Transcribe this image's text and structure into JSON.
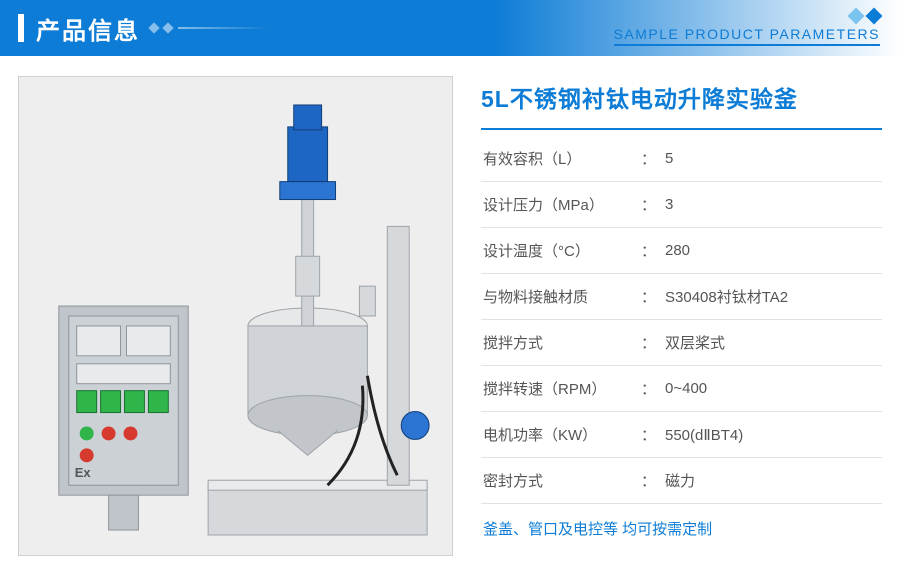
{
  "header": {
    "title_cn": "产品信息",
    "subtitle_en": "SAMPLE PRODUCT PARAMETERS"
  },
  "product": {
    "title": "5L不锈钢衬钛电动升降实验釜"
  },
  "specs": [
    {
      "label": "有效容积（L）",
      "value": "5"
    },
    {
      "label": "设计压力（MPa）",
      "value": "3"
    },
    {
      "label": "设计温度（°C）",
      "value": "280"
    },
    {
      "label": "与物料接触材质",
      "value": "S30408衬钛材TA2"
    },
    {
      "label": "搅拌方式",
      "value": "双层桨式"
    },
    {
      "label": "搅拌转速（RPM）",
      "value": "0~400"
    },
    {
      "label": "电机功率（KW）",
      "value": "550(dⅡBT4)"
    },
    {
      "label": "密封方式",
      "value": "磁力"
    }
  ],
  "footer_note": "釜盖、管口及电控等 均可按需定制",
  "colors": {
    "brand_blue": "#0d7cd6",
    "light_blue": "#7cc4f0",
    "border_gray": "#e2e2e2",
    "text_gray": "#555555",
    "bg_gray": "#efefef"
  },
  "image": {
    "description": "Stainless steel reactor with blue motor, explosion-proof control box (Ex)",
    "motor_color": "#1e66c4",
    "steel_color": "#c9ccd0",
    "box_color": "#b8bec4"
  }
}
